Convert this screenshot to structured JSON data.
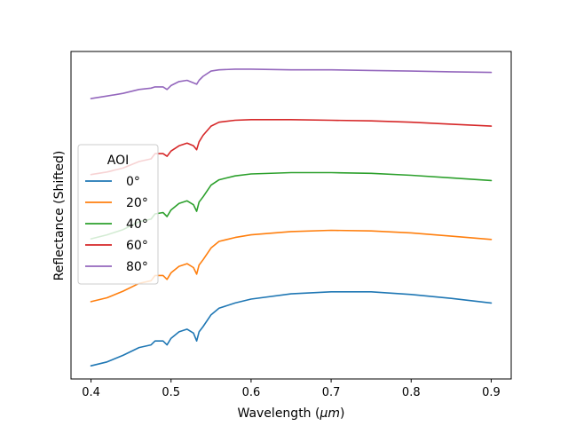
{
  "chart_data": {
    "type": "line",
    "title": "",
    "xlabel": "Wavelength ($\\mu m$)",
    "xlabel_prefix": "Wavelength (",
    "xlabel_unit": "μm",
    "xlabel_suffix": ")",
    "ylabel": "Reflectance (Shifted)",
    "xlim": [
      0.375,
      0.925
    ],
    "ylim": [
      0.0,
      5.0
    ],
    "x_ticks": [
      0.4,
      0.5,
      0.6,
      0.7,
      0.8,
      0.9
    ],
    "x_tick_labels": [
      "0.4",
      "0.5",
      "0.6",
      "0.7",
      "0.8",
      "0.9"
    ],
    "y_ticks_shown": false,
    "grid": false,
    "legend": {
      "title": "AOI",
      "placement": "center-left"
    },
    "x": [
      0.4,
      0.42,
      0.44,
      0.46,
      0.475,
      0.48,
      0.49,
      0.495,
      0.5,
      0.51,
      0.52,
      0.528,
      0.532,
      0.535,
      0.54,
      0.55,
      0.56,
      0.58,
      0.6,
      0.65,
      0.7,
      0.75,
      0.8,
      0.85,
      0.9
    ],
    "series": [
      {
        "name": "0°",
        "color": "#1f77b4",
        "values": [
          0.2,
          0.26,
          0.36,
          0.48,
          0.52,
          0.58,
          0.58,
          0.52,
          0.62,
          0.72,
          0.76,
          0.7,
          0.58,
          0.72,
          0.8,
          0.98,
          1.08,
          1.16,
          1.22,
          1.3,
          1.33,
          1.33,
          1.29,
          1.23,
          1.16
        ]
      },
      {
        "name": "20°",
        "color": "#ff7f0e",
        "values": [
          1.18,
          1.24,
          1.34,
          1.46,
          1.5,
          1.58,
          1.58,
          1.52,
          1.62,
          1.72,
          1.76,
          1.7,
          1.6,
          1.74,
          1.82,
          2.0,
          2.1,
          2.16,
          2.2,
          2.25,
          2.27,
          2.26,
          2.23,
          2.18,
          2.13
        ]
      },
      {
        "name": "40°",
        "color": "#2ca02c",
        "values": [
          2.14,
          2.2,
          2.28,
          2.4,
          2.44,
          2.52,
          2.54,
          2.48,
          2.58,
          2.68,
          2.72,
          2.66,
          2.56,
          2.7,
          2.78,
          2.96,
          3.04,
          3.1,
          3.13,
          3.15,
          3.15,
          3.14,
          3.11,
          3.07,
          3.03
        ]
      },
      {
        "name": "60°",
        "color": "#d62728",
        "values": [
          3.12,
          3.16,
          3.22,
          3.32,
          3.36,
          3.44,
          3.44,
          3.4,
          3.48,
          3.56,
          3.6,
          3.56,
          3.5,
          3.62,
          3.72,
          3.86,
          3.92,
          3.95,
          3.96,
          3.96,
          3.95,
          3.94,
          3.92,
          3.89,
          3.86
        ]
      },
      {
        "name": "80°",
        "color": "#9467bd",
        "values": [
          4.28,
          4.32,
          4.36,
          4.42,
          4.44,
          4.46,
          4.46,
          4.42,
          4.48,
          4.54,
          4.56,
          4.52,
          4.5,
          4.56,
          4.62,
          4.7,
          4.72,
          4.73,
          4.73,
          4.72,
          4.72,
          4.71,
          4.7,
          4.69,
          4.68
        ]
      }
    ]
  }
}
